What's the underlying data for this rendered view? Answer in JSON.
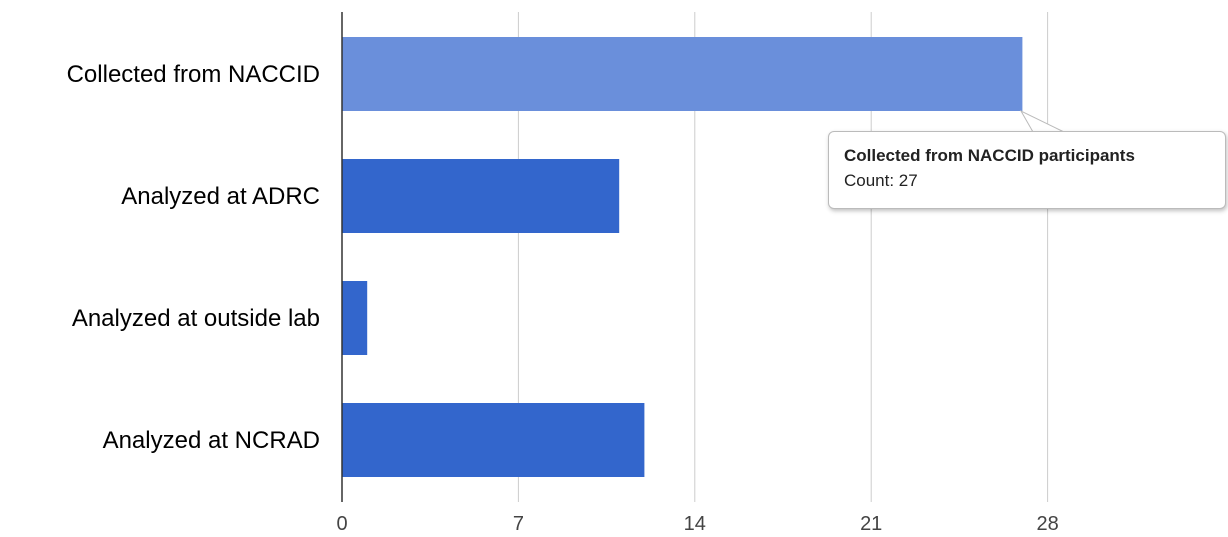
{
  "chart_data": {
    "type": "bar",
    "orientation": "horizontal",
    "categories": [
      "Collected from NACCID",
      "Analyzed at ADRC",
      "Analyzed at outside lab",
      "Analyzed at NCRAD"
    ],
    "values": [
      27,
      11,
      1,
      12
    ],
    "x_ticks": [
      "0",
      "7",
      "14",
      "21",
      "28"
    ],
    "xlim": [
      0,
      35
    ],
    "grid": true,
    "colors": {
      "bar": "#3366cc",
      "bar_highlight": "#6a8fdb"
    },
    "highlighted_index": 0,
    "tooltip": {
      "title": "Collected from NACCID participants",
      "value_text": "Count: 27"
    }
  }
}
